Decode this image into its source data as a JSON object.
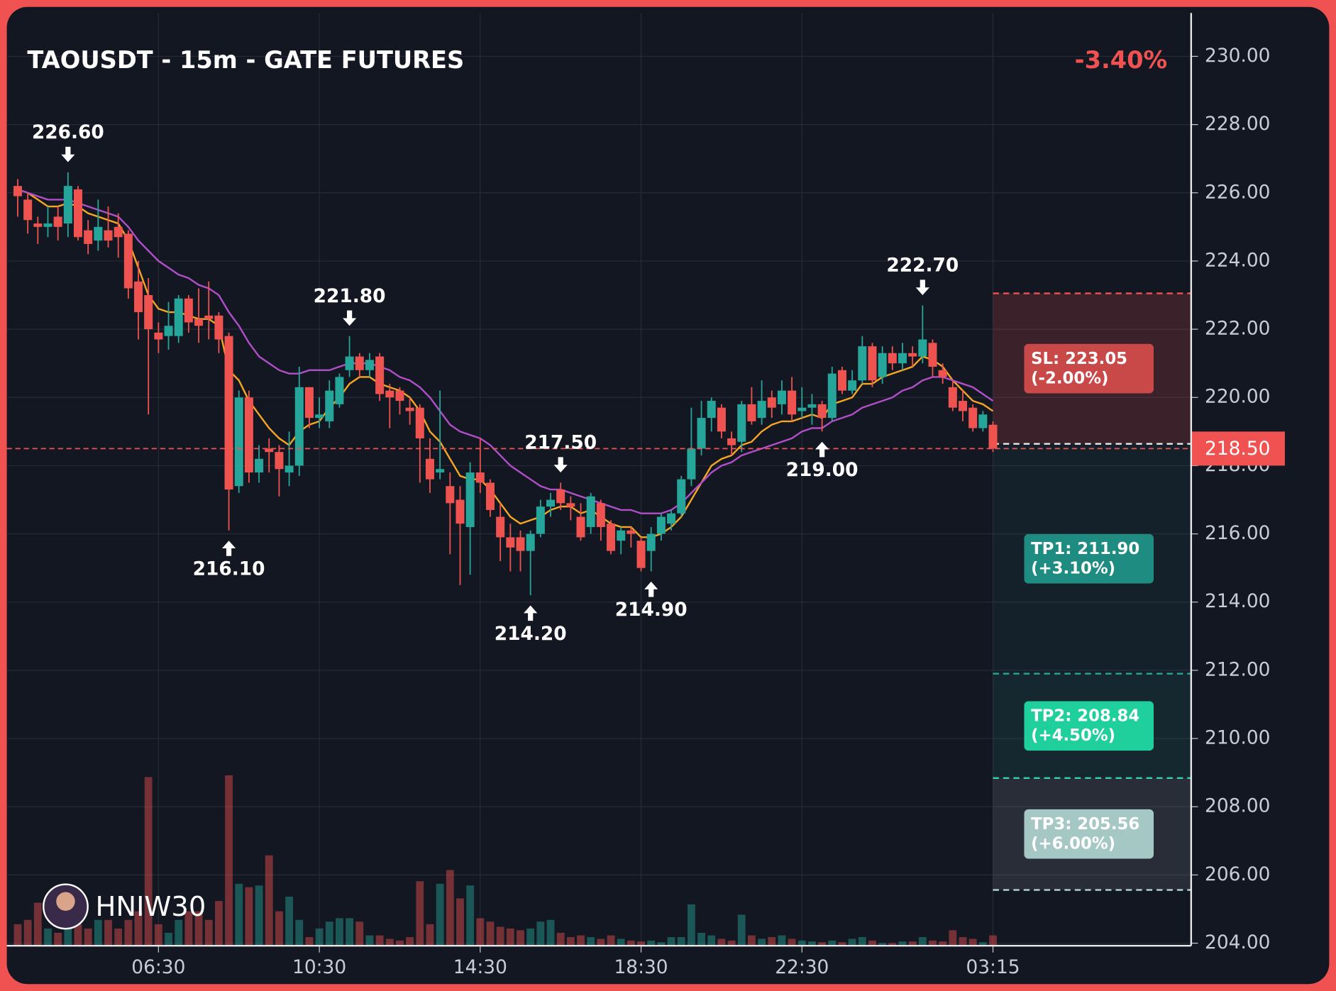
{
  "chart_data": {
    "type": "candlestick",
    "title": "TAOUSDT - 15m - GATE FUTURES",
    "change": "-3.40%",
    "watermark": "HNIW30",
    "categories": [
      null,
      null,
      null,
      null,
      null,
      null,
      null,
      null,
      null,
      null,
      null,
      null,
      null,
      null,
      "06:30",
      null,
      null,
      null,
      null,
      null,
      null,
      null,
      null,
      null,
      null,
      null,
      null,
      null,
      null,
      null,
      "10:30",
      null,
      null,
      null,
      null,
      null,
      null,
      null,
      null,
      null,
      null,
      null,
      null,
      null,
      null,
      null,
      "14:30",
      null,
      null,
      null,
      null,
      null,
      null,
      null,
      null,
      null,
      null,
      null,
      null,
      null,
      null,
      null,
      "18:30",
      null,
      null,
      null,
      null,
      null,
      null,
      null,
      null,
      null,
      null,
      null,
      null,
      null,
      null,
      null,
      "22:30",
      null,
      null,
      null,
      null,
      null,
      null,
      null,
      null,
      null,
      null,
      null,
      null,
      null,
      null,
      null,
      null,
      null,
      null,
      "03:15"
    ],
    "open": [
      226.2,
      225.8,
      225.1,
      225.0,
      225.3,
      225.1,
      226.1,
      224.9,
      224.6,
      224.9,
      225.0,
      224.8,
      223.4,
      223.0,
      221.9,
      221.8,
      221.8,
      222.9,
      222.3,
      222.4,
      222.4,
      221.8,
      217.4,
      220.0,
      217.8,
      218.5,
      218.4,
      217.8,
      218.0,
      220.3,
      219.4,
      219.3,
      219.8,
      220.8,
      221.2,
      220.8,
      221.2,
      220.2,
      220.2,
      219.7,
      219.7,
      218.2,
      217.8,
      217.4,
      217.0,
      216.2,
      217.8,
      217.5,
      216.5,
      215.9,
      215.9,
      215.5,
      216.0,
      216.8,
      217.3,
      216.9,
      216.5,
      216.2,
      216.9,
      216.3,
      215.8,
      216.1,
      215.8,
      215.5,
      216.0,
      216.3,
      216.6,
      217.6,
      218.5,
      219.4,
      219.7,
      218.8,
      218.7,
      219.8,
      219.4,
      220.0,
      219.8,
      220.2,
      219.6,
      219.7,
      219.8,
      219.4,
      220.8,
      220.2,
      220.5,
      221.5,
      220.6,
      221.3,
      221.0,
      221.3,
      221.2,
      221.6,
      220.8,
      220.3,
      219.9,
      219.7,
      219.1,
      219.2
    ],
    "high": [
      226.4,
      226.0,
      225.3,
      225.6,
      225.6,
      226.6,
      226.2,
      225.2,
      225.8,
      225.6,
      225.4,
      224.9,
      224.0,
      223.5,
      222.2,
      222.8,
      223.0,
      223.0,
      223.2,
      223.4,
      222.5,
      221.9,
      220.2,
      220.2,
      218.6,
      218.8,
      218.6,
      219.0,
      220.9,
      220.3,
      220.0,
      220.5,
      220.7,
      221.8,
      221.3,
      221.3,
      221.3,
      220.4,
      220.3,
      220.0,
      219.8,
      218.8,
      220.2,
      217.8,
      217.4,
      218.1,
      218.8,
      217.6,
      216.9,
      216.3,
      216.1,
      216.1,
      217.0,
      217.2,
      217.5,
      217.1,
      216.9,
      217.2,
      217.0,
      216.4,
      216.2,
      216.2,
      215.9,
      216.2,
      216.6,
      216.7,
      217.7,
      219.7,
      219.9,
      220.0,
      219.8,
      219.0,
      219.9,
      220.3,
      220.5,
      220.2,
      220.5,
      220.6,
      220.3,
      220.1,
      219.9,
      220.9,
      220.9,
      220.8,
      221.8,
      221.6,
      221.5,
      221.5,
      221.6,
      221.5,
      222.7,
      221.7,
      221.0,
      220.5,
      220.2,
      219.8,
      219.6,
      219.3
    ],
    "low": [
      225.3,
      224.8,
      224.5,
      224.7,
      224.6,
      224.7,
      224.6,
      224.2,
      224.3,
      224.4,
      224.1,
      222.9,
      221.7,
      219.5,
      221.3,
      221.4,
      221.6,
      221.9,
      221.6,
      221.7,
      221.3,
      216.1,
      217.2,
      217.5,
      217.5,
      217.8,
      217.1,
      217.4,
      217.7,
      219.1,
      219.1,
      219.1,
      219.7,
      220.6,
      220.6,
      220.6,
      219.9,
      219.1,
      219.5,
      219.2,
      217.5,
      217.2,
      217.6,
      215.4,
      214.5,
      214.8,
      217.2,
      216.5,
      215.2,
      214.9,
      214.9,
      214.2,
      215.9,
      216.5,
      216.7,
      216.4,
      215.8,
      216.0,
      215.8,
      215.4,
      215.4,
      215.6,
      214.9,
      214.9,
      215.8,
      216.1,
      216.5,
      217.4,
      218.3,
      219.0,
      218.8,
      218.3,
      218.4,
      219.2,
      219.2,
      219.4,
      219.5,
      219.3,
      219.4,
      219.2,
      219.0,
      219.3,
      220.1,
      220.1,
      220.4,
      220.3,
      220.4,
      220.8,
      220.8,
      220.9,
      221.0,
      220.6,
      220.4,
      219.6,
      219.3,
      219.0,
      219.0,
      218.4
    ],
    "close": [
      225.9,
      225.2,
      225.0,
      225.1,
      225.0,
      226.2,
      224.7,
      224.5,
      225.0,
      224.6,
      224.7,
      223.2,
      222.5,
      222.0,
      221.7,
      222.1,
      222.9,
      222.2,
      222.1,
      222.3,
      221.7,
      217.3,
      220.0,
      217.8,
      218.2,
      218.4,
      217.9,
      218.0,
      220.3,
      219.4,
      219.5,
      220.2,
      220.6,
      221.2,
      220.8,
      221.1,
      220.1,
      220.0,
      219.9,
      219.6,
      218.8,
      217.6,
      217.9,
      216.9,
      216.3,
      217.8,
      217.5,
      216.7,
      215.9,
      215.6,
      215.5,
      216.0,
      216.8,
      217.0,
      216.9,
      216.8,
      215.9,
      217.1,
      216.2,
      215.5,
      216.1,
      216.0,
      215.0,
      216.0,
      216.5,
      216.6,
      217.6,
      218.5,
      219.4,
      219.9,
      219.0,
      218.6,
      219.8,
      219.3,
      219.9,
      219.7,
      220.2,
      219.5,
      219.7,
      219.8,
      219.4,
      220.7,
      220.2,
      220.5,
      221.5,
      220.5,
      221.3,
      221.0,
      221.3,
      221.2,
      221.7,
      220.9,
      220.6,
      219.7,
      219.6,
      219.1,
      219.5,
      218.5
    ],
    "volume": [
      25,
      30,
      50,
      20,
      15,
      30,
      25,
      20,
      30,
      30,
      20,
      30,
      40,
      196,
      25,
      15,
      30,
      40,
      40,
      30,
      52,
      198,
      72,
      68,
      70,
      105,
      40,
      57,
      30,
      10,
      20,
      28,
      32,
      32,
      28,
      12,
      12,
      8,
      6,
      10,
      75,
      25,
      72,
      88,
      55,
      70,
      32,
      28,
      22,
      20,
      18,
      20,
      28,
      30,
      15,
      10,
      12,
      10,
      8,
      12,
      8,
      6,
      5,
      6,
      4,
      10,
      10,
      48,
      15,
      12,
      8,
      6,
      36,
      12,
      8,
      10,
      12,
      8,
      6,
      5,
      4,
      6,
      4,
      8,
      10,
      6,
      3,
      3,
      5,
      5,
      10,
      6,
      5,
      18,
      10,
      8,
      4,
      12
    ],
    "up_color": "#26a69a",
    "down_color": "#ef5350",
    "series": [
      {
        "color": "#f5a623",
        "values": [
          226.1,
          226.0,
          225.8,
          225.6,
          225.6,
          225.7,
          225.6,
          225.4,
          225.3,
          225.2,
          225.1,
          224.6,
          223.8,
          223.0,
          222.6,
          222.5,
          222.5,
          222.4,
          222.3,
          222.3,
          222.1,
          220.8,
          220.5,
          219.9,
          219.5,
          219.1,
          218.8,
          218.6,
          219.0,
          219.2,
          219.3,
          219.7,
          220.0,
          220.4,
          220.6,
          220.6,
          220.4,
          220.3,
          220.2,
          220.0,
          219.6,
          219.0,
          218.7,
          218.2,
          217.7,
          217.6,
          217.6,
          217.3,
          216.9,
          216.5,
          216.3,
          216.4,
          216.5,
          216.7,
          216.8,
          216.8,
          216.6,
          216.7,
          216.5,
          216.3,
          216.2,
          216.2,
          215.9,
          215.9,
          216.0,
          216.2,
          216.5,
          217.0,
          217.5,
          218.0,
          218.2,
          218.3,
          218.6,
          218.7,
          219.0,
          219.2,
          219.3,
          219.3,
          219.4,
          219.5,
          219.4,
          219.8,
          219.9,
          220.0,
          220.4,
          220.4,
          220.6,
          220.7,
          220.8,
          220.9,
          221.2,
          221.1,
          220.9,
          220.5,
          220.2,
          219.9,
          219.8,
          219.6
        ]
      },
      {
        "color": "#b04fc8",
        "values": [
          226.1,
          226.0,
          225.9,
          225.8,
          225.8,
          225.8,
          225.7,
          225.6,
          225.5,
          225.4,
          225.3,
          225.0,
          224.6,
          224.3,
          224.0,
          223.8,
          223.6,
          223.5,
          223.3,
          223.2,
          223.0,
          222.5,
          222.1,
          221.6,
          221.2,
          221.0,
          220.8,
          220.7,
          220.7,
          220.8,
          220.8,
          220.8,
          220.9,
          221.0,
          221.0,
          221.0,
          220.9,
          220.8,
          220.6,
          220.5,
          220.3,
          220.0,
          219.6,
          219.2,
          219.0,
          218.9,
          218.8,
          218.6,
          218.3,
          218.0,
          217.8,
          217.6,
          217.4,
          217.3,
          217.3,
          217.2,
          217.1,
          217.0,
          216.9,
          216.8,
          216.7,
          216.7,
          216.6,
          216.6,
          216.6,
          216.7,
          216.9,
          217.2,
          217.5,
          217.8,
          218.0,
          218.1,
          218.3,
          218.4,
          218.5,
          218.6,
          218.7,
          218.8,
          219.0,
          219.1,
          219.1,
          219.3,
          219.4,
          219.5,
          219.7,
          219.8,
          219.9,
          220.0,
          220.2,
          220.3,
          220.5,
          220.6,
          220.6,
          220.5,
          220.4,
          220.3,
          220.1,
          219.9
        ]
      }
    ],
    "ylim": [
      204,
      230
    ],
    "yticks": [
      {
        "value": 204,
        "label": "204.00"
      },
      {
        "value": 206,
        "label": "206.00"
      },
      {
        "value": 208,
        "label": "208.00"
      },
      {
        "value": 210,
        "label": "210.00"
      },
      {
        "value": 212,
        "label": "212.00"
      },
      {
        "value": 214,
        "label": "214.00"
      },
      {
        "value": 216,
        "label": "216.00"
      },
      {
        "value": 218,
        "label": "218.00"
      },
      {
        "value": 220,
        "label": "220.00"
      },
      {
        "value": 222,
        "label": "222.00"
      },
      {
        "value": 224,
        "label": "224.00"
      },
      {
        "value": 226,
        "label": "226.00"
      },
      {
        "value": 228,
        "label": "228.00"
      },
      {
        "value": 230,
        "label": "230.00"
      }
    ],
    "grid": true,
    "annotations": [
      {
        "index": 5,
        "value": 226.6,
        "label": "226.60",
        "position": "above"
      },
      {
        "index": 21,
        "value": 216.1,
        "label": "216.10",
        "position": "below"
      },
      {
        "index": 33,
        "value": 221.8,
        "label": "221.80",
        "position": "above"
      },
      {
        "index": 51,
        "value": 214.2,
        "label": "214.20",
        "position": "below"
      },
      {
        "index": 54,
        "value": 217.5,
        "label": "217.50",
        "position": "above"
      },
      {
        "index": 63,
        "value": 214.9,
        "label": "214.90",
        "position": "below"
      },
      {
        "index": 80,
        "value": 219.0,
        "label": "219.00",
        "position": "below"
      },
      {
        "index": 90,
        "value": 222.7,
        "label": "222.70",
        "position": "above"
      }
    ],
    "current_price": {
      "value": 218.5,
      "label": "218.50",
      "color": "#f05252"
    },
    "entry": 218.64,
    "levels": [
      {
        "label": "SL: 223.05",
        "change": "(-2.00%)",
        "value": 223.05,
        "box_color": "#c94848",
        "line_color": "#f05252",
        "zone_color": "rgba(240,82,82,0.18)"
      },
      {
        "label": "TP1: 211.90",
        "change": "(+3.10%)",
        "value": 211.9,
        "box_color": "#1f8c82",
        "line_color": "#26a69a",
        "zone_color": "rgba(38,166,154,0.07)"
      },
      {
        "label": "TP2: 208.84",
        "change": "(+4.50%)",
        "value": 208.84,
        "box_color": "#1fcf9c",
        "line_color": "#2dd4a8",
        "zone_color": "rgba(38,166,154,0.12)"
      },
      {
        "label": "TP3: 205.56",
        "change": "(+6.00%)",
        "value": 205.56,
        "box_color": "#a5c8c5",
        "line_color": "#b6d6d2",
        "zone_color": "rgba(200,205,215,0.12)"
      }
    ]
  }
}
